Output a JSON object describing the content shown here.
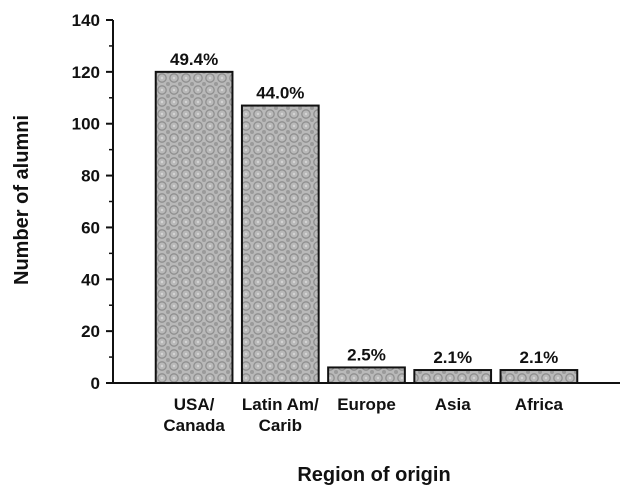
{
  "chart_data": {
    "type": "bar",
    "categories": [
      [
        "USA/",
        "Canada"
      ],
      [
        "Latin Am/",
        "Carib"
      ],
      [
        "Europe"
      ],
      [
        "Asia"
      ],
      [
        "Africa"
      ]
    ],
    "values": [
      120,
      107,
      6,
      5,
      5
    ],
    "data_labels": [
      "49.4%",
      "44.0%",
      "2.5%",
      "2.1%",
      "2.1%"
    ],
    "xlabel": "Region of origin",
    "ylabel": "Number of alumni",
    "ylim": [
      0,
      140
    ],
    "yticks": [
      0,
      20,
      40,
      60,
      80,
      100,
      120,
      140
    ],
    "grid": false,
    "bar_color": "#b8b8b8"
  }
}
